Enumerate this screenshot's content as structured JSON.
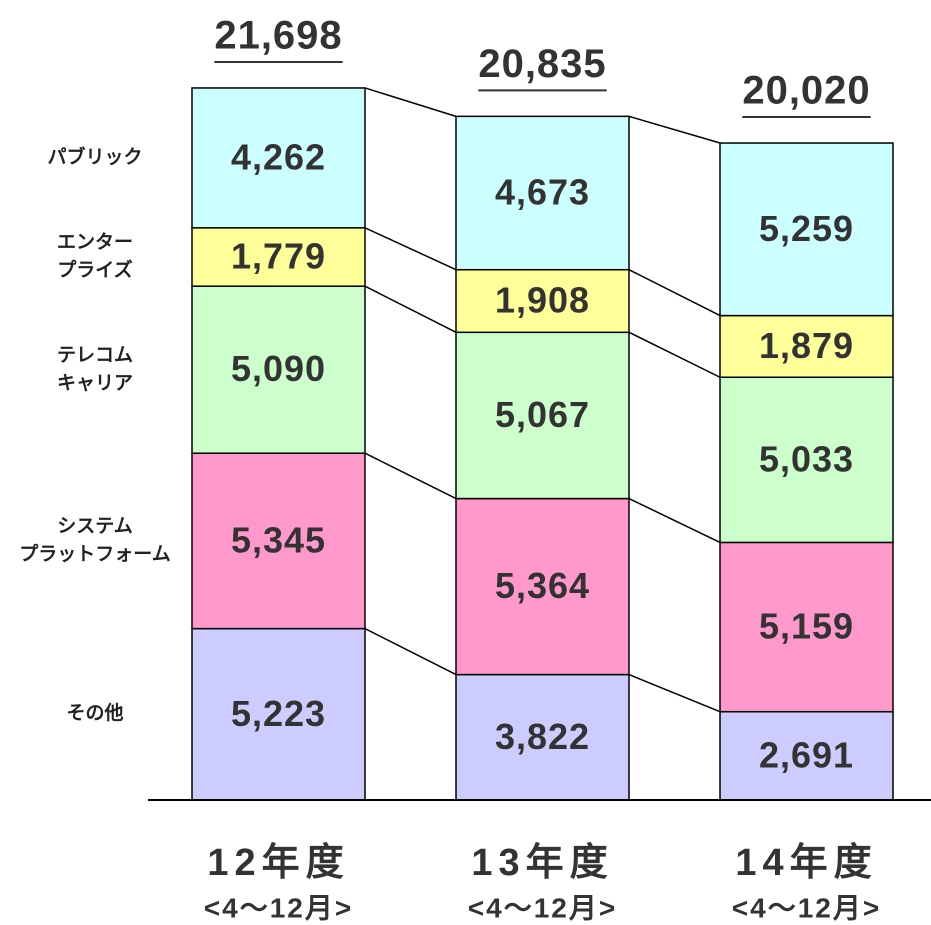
{
  "chart_data": {
    "type": "stacked_bar",
    "categories": [
      "12年度",
      "13年度",
      "14年度"
    ],
    "category_sublabels": [
      "<4～12月>",
      "<4～12月>",
      "<4～12月>"
    ],
    "series": [
      {
        "name": "その他",
        "color": "#ccccff",
        "values": [
          5223,
          3822,
          2691
        ],
        "value_labels": [
          "5,223",
          "3,822",
          "2,691"
        ]
      },
      {
        "name": "システム\nプラットフォーム",
        "color": "#ff99cc",
        "values": [
          5345,
          5364,
          5159
        ],
        "value_labels": [
          "5,345",
          "5,364",
          "5,159"
        ]
      },
      {
        "name": "テレコム\nキャリア",
        "color": "#ccffcc",
        "values": [
          5090,
          5067,
          5033
        ],
        "value_labels": [
          "5,090",
          "5,067",
          "5,033"
        ]
      },
      {
        "name": "エンター\nプライズ",
        "color": "#ffff99",
        "values": [
          1779,
          1908,
          1879
        ],
        "value_labels": [
          "1,779",
          "1,908",
          "1,879"
        ]
      },
      {
        "name": "パブリック",
        "color": "#ccffff",
        "values": [
          4262,
          4673,
          5259
        ],
        "value_labels": [
          "4,262",
          "4,673",
          "5,259"
        ]
      }
    ],
    "totals": [
      21698,
      20835,
      20020
    ],
    "total_labels": [
      "21,698",
      "20,835",
      "20,020"
    ]
  }
}
